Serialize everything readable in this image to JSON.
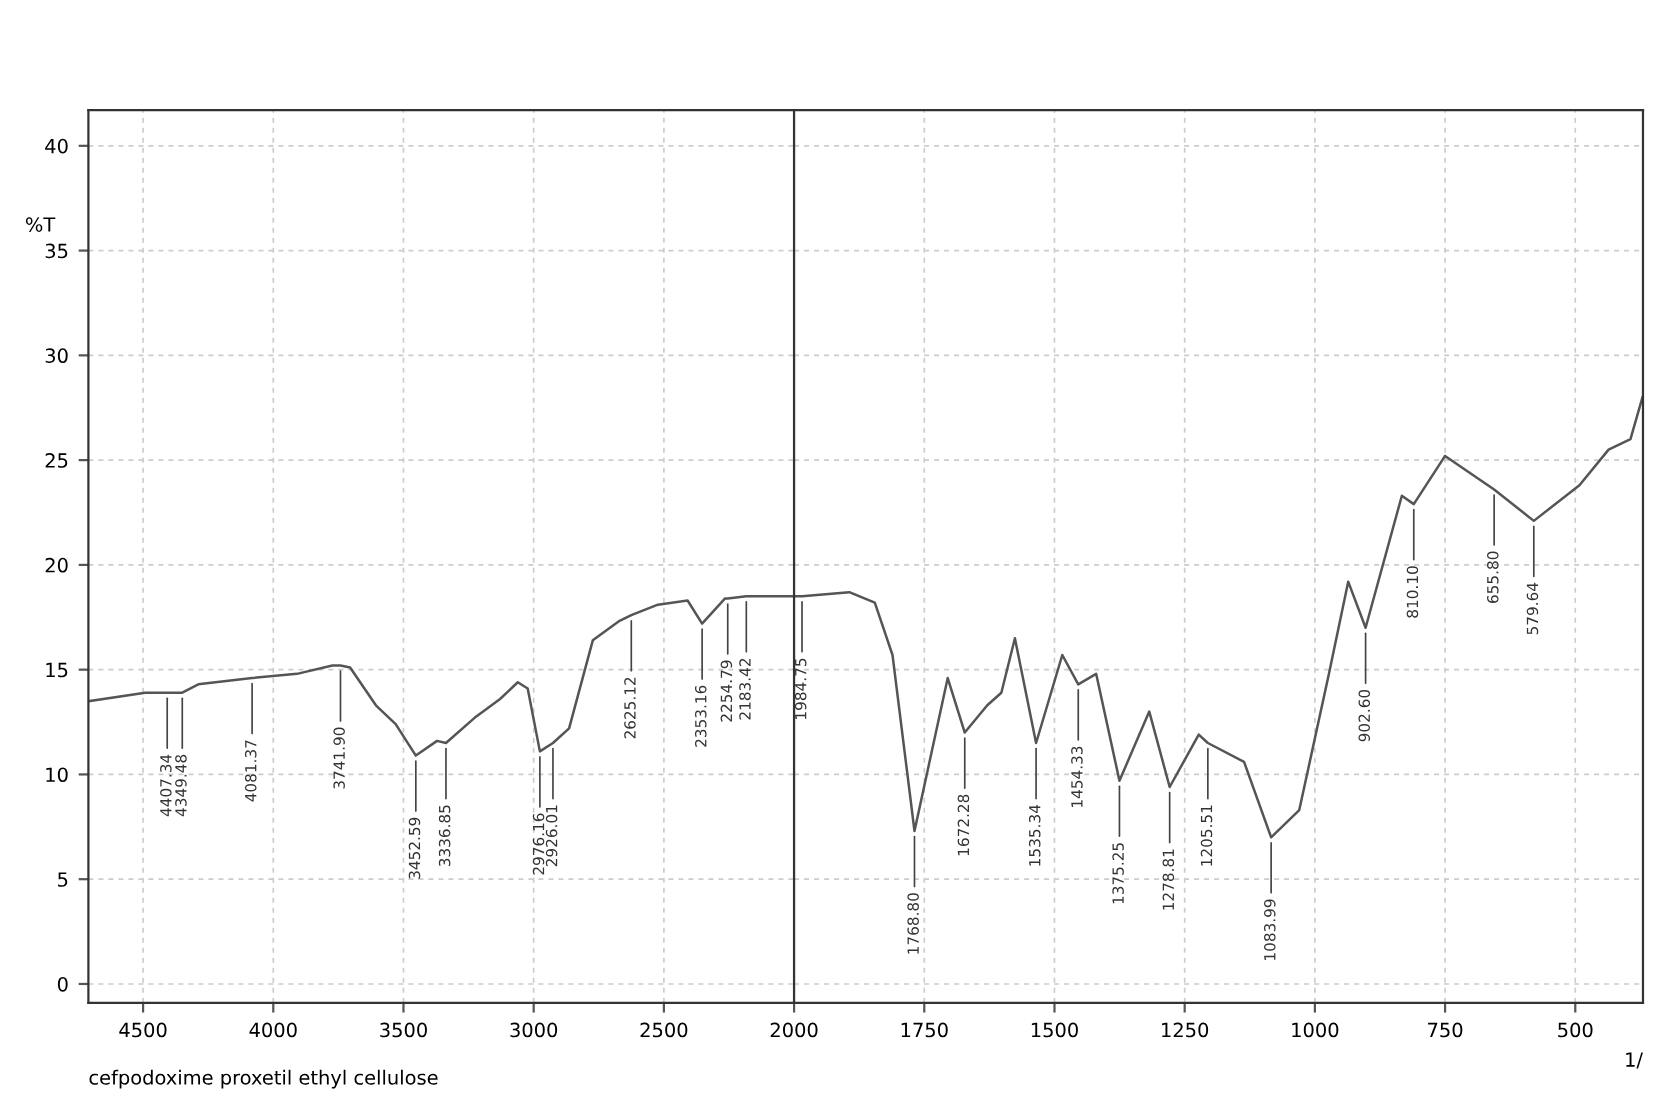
{
  "chart_data": [
    {
      "type": "line",
      "ylabel": "%T",
      "xlim": [
        4710,
        2000
      ],
      "xticks": [
        4500,
        4000,
        3500,
        3000,
        2500,
        2000
      ],
      "ylim": [
        -0.9,
        41.7
      ],
      "yticks": [
        0,
        5,
        10,
        15,
        20,
        25,
        30,
        35,
        40
      ],
      "grid": true,
      "line_style": "solid",
      "marker": "none",
      "series": [
        {
          "color": "#555555",
          "x": [
            4705,
            4492,
            4407.34,
            4349.48,
            4288,
            4081.37,
            3909,
            3773,
            3741.9,
            3705,
            3606,
            3530,
            3452.59,
            3371,
            3336.85,
            3227,
            3129,
            3061,
            3023,
            2976.16,
            2926.01,
            2864,
            2773,
            2674,
            2625.12,
            2523,
            2409,
            2353.16,
            2265,
            2254.79,
            2183.42,
            2144,
            2000
          ],
          "values": [
            13.5,
            13.9,
            13.9,
            13.9,
            14.3,
            14.6,
            14.8,
            15.2,
            15.2,
            15.1,
            13.3,
            12.4,
            10.9,
            11.6,
            11.5,
            12.7,
            13.6,
            14.4,
            14.1,
            11.1,
            11.5,
            12.2,
            16.4,
            17.3,
            17.6,
            18.1,
            18.3,
            17.2,
            18.4,
            18.4,
            18.5,
            18.5,
            18.5
          ]
        }
      ],
      "annotations": [
        {
          "text": "4407.34",
          "x": 4407.34,
          "y": 13.9
        },
        {
          "text": "4349.48",
          "x": 4349.48,
          "y": 13.9
        },
        {
          "text": "4081.37",
          "x": 4081.37,
          "y": 14.6
        },
        {
          "text": "3741.90",
          "x": 3741.9,
          "y": 15.2
        },
        {
          "text": "3452.59",
          "x": 3452.59,
          "y": 10.9
        },
        {
          "text": "3336.85",
          "x": 3336.85,
          "y": 11.5
        },
        {
          "text": "2976.16",
          "x": 2976.16,
          "y": 11.1
        },
        {
          "text": "2926.01",
          "x": 2926.01,
          "y": 11.5
        },
        {
          "text": "2625.12",
          "x": 2625.12,
          "y": 17.6
        },
        {
          "text": "2353.16",
          "x": 2353.16,
          "y": 17.2
        },
        {
          "text": "2254.79",
          "x": 2254.79,
          "y": 18.4
        },
        {
          "text": "2183.42",
          "x": 2183.42,
          "y": 18.5
        },
        "cefpodoxime proxetil ethyl cellulose"
      ]
    },
    {
      "type": "line",
      "xlabel": "1/",
      "xlim": [
        2000,
        370
      ],
      "xticks": [
        1750,
        1500,
        1250,
        1000,
        750,
        500
      ],
      "ylim": [
        -0.9,
        41.7
      ],
      "yticks": [
        0,
        5,
        10,
        15,
        20,
        25,
        30,
        35,
        40
      ],
      "tick_labels": "x",
      "grid": true,
      "line_style": "solid",
      "marker": "none",
      "series": [
        {
          "color": "#555555",
          "x": [
            2000,
            1984.75,
            1894,
            1845,
            1811,
            1768.8,
            1705,
            1672.28,
            1629,
            1602,
            1576,
            1535.34,
            1485,
            1454.33,
            1420,
            1375.25,
            1318,
            1278.81,
            1223,
            1205.51,
            1136,
            1083.99,
            1030,
            973,
            936,
            902.6,
            833,
            810.1,
            750,
            655.8,
            579.64,
            492,
            436,
            394,
            371
          ],
          "values": [
            18.5,
            18.5,
            18.7,
            18.2,
            15.7,
            7.3,
            14.6,
            12.0,
            13.3,
            13.9,
            16.5,
            11.5,
            15.7,
            14.3,
            14.8,
            9.7,
            13.0,
            9.4,
            11.9,
            11.5,
            10.6,
            7.0,
            8.3,
            14.8,
            19.2,
            17.0,
            23.3,
            22.9,
            25.2,
            23.6,
            22.1,
            23.8,
            25.5,
            26.0,
            28.0
          ]
        }
      ],
      "annotations": [
        {
          "text": "1984.75",
          "x": 1984.75,
          "y": 18.5
        },
        {
          "text": "1768.80",
          "x": 1768.8,
          "y": 7.3
        },
        {
          "text": "1672.28",
          "x": 1672.28,
          "y": 12.0
        },
        {
          "text": "1535.34",
          "x": 1535.34,
          "y": 11.5
        },
        {
          "text": "1454.33",
          "x": 1454.33,
          "y": 14.3
        },
        {
          "text": "1375.25",
          "x": 1375.25,
          "y": 9.7
        },
        {
          "text": "1278.81",
          "x": 1278.81,
          "y": 9.4
        },
        {
          "text": "1205.51",
          "x": 1205.51,
          "y": 11.5
        },
        {
          "text": "1083.99",
          "x": 1083.99,
          "y": 7.0
        },
        {
          "text": "902.60",
          "x": 902.6,
          "y": 17.0
        },
        {
          "text": "810.10",
          "x": 810.1,
          "y": 22.9
        },
        {
          "text": "655.80",
          "x": 655.8,
          "y": 23.6
        },
        {
          "text": "579.64",
          "x": 579.64,
          "y": 22.1
        }
      ]
    }
  ]
}
